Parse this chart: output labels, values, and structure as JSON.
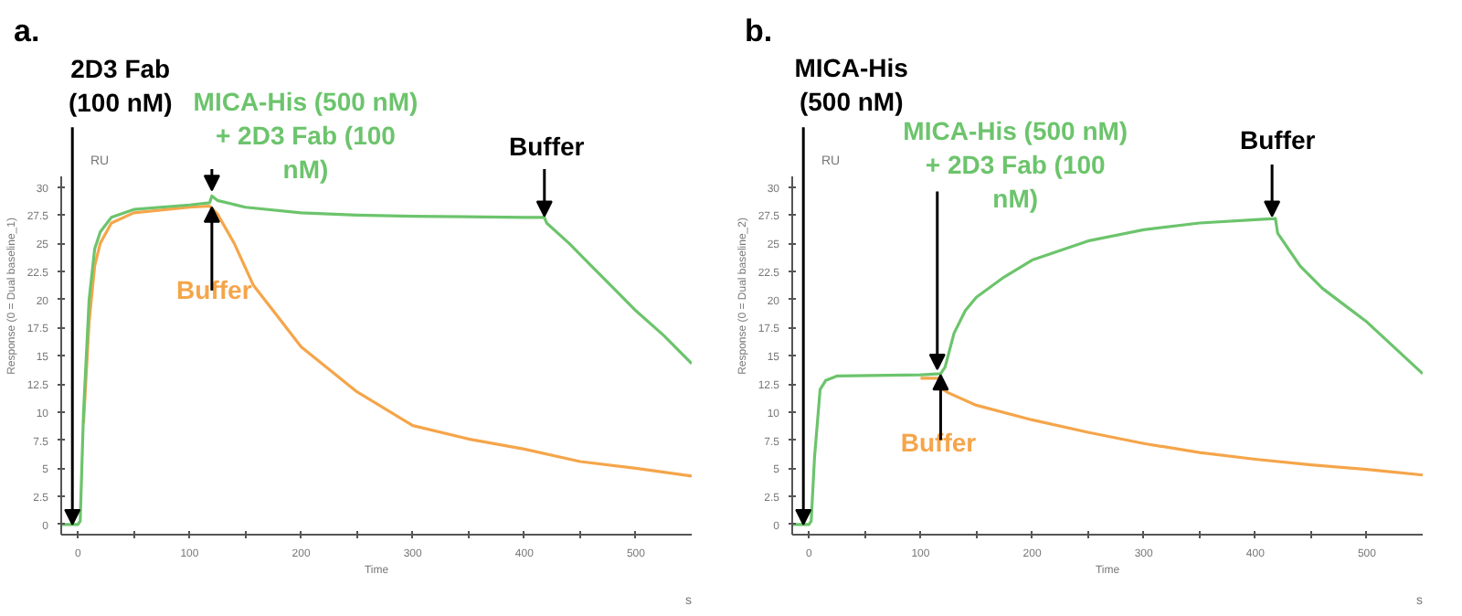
{
  "chart_data": [
    {
      "type": "line",
      "title": "a.",
      "xlabel": "Time",
      "ylabel": "Response (0 = Dual baseline_1)",
      "xlim": [
        -15,
        550
      ],
      "ylim": [
        -0.9,
        31
      ],
      "xticks": [
        0,
        {
          "value": 50,
          "label": null
        },
        100,
        {
          "value": 150,
          "label": null
        },
        200,
        {
          "value": 250,
          "label": null
        },
        300,
        {
          "value": 350,
          "label": null
        },
        400,
        {
          "value": 450,
          "label": null
        },
        500
      ],
      "yticks": [
        0,
        2.5,
        5,
        7.5,
        10,
        12.5,
        15,
        17.5,
        20,
        22.5,
        25,
        27.5,
        30
      ],
      "grid": false,
      "marker": "none",
      "line_style": "solid",
      "series": [
        {
          "color": "#6cc46c",
          "x": [
            -15,
            0,
            2,
            5,
            10,
            15,
            20,
            30,
            50,
            100,
            118,
            120,
            125,
            150,
            200,
            250,
            300,
            400,
            418,
            420,
            440,
            460,
            480,
            500,
            525,
            550
          ],
          "values": [
            0,
            0,
            0.3,
            10,
            20,
            24.5,
            26,
            27.3,
            28,
            28.4,
            28.6,
            29.2,
            28.8,
            28.2,
            27.7,
            27.5,
            27.4,
            27.3,
            27.3,
            26.8,
            25,
            23,
            21,
            19,
            16.8,
            14.3
          ]
        },
        {
          "color": "#f5a54a",
          "x": [
            5,
            10,
            15,
            20,
            30,
            50,
            100,
            118,
            125,
            140,
            157,
            175,
            200,
            250,
            300,
            350,
            400,
            450,
            500,
            550
          ],
          "values": [
            9,
            18,
            23,
            25,
            26.8,
            27.7,
            28.2,
            28.3,
            27.6,
            25,
            21.3,
            19,
            15.8,
            11.8,
            8.8,
            7.6,
            6.7,
            5.6,
            5,
            4.3
          ]
        }
      ],
      "annotations": [
        {
          "text": "2D3 Fab\n(100 nM)",
          "x": -5,
          "y": 0
        },
        {
          "text": "MICA-His (500 nM)\n+ 2D3 Fab (100\nnM)",
          "x": 120,
          "y": 29.7
        },
        {
          "text": "Buffer",
          "x": 418,
          "y": 27.4
        },
        {
          "text": "Buffer",
          "x": 120,
          "y": 28.2
        },
        "RU",
        "s"
      ]
    },
    {
      "type": "line",
      "title": "b.",
      "xlabel": "Time",
      "ylabel": "Response (0 = Dual baseline_2)",
      "xlim": [
        -15,
        550
      ],
      "ylim": [
        -0.9,
        31
      ],
      "xticks": [
        0,
        {
          "value": 50,
          "label": null
        },
        100,
        {
          "value": 150,
          "label": null
        },
        200,
        {
          "value": 250,
          "label": null
        },
        300,
        {
          "value": 350,
          "label": null
        },
        400,
        {
          "value": 450,
          "label": null
        },
        500
      ],
      "yticks": [
        0,
        2.5,
        5,
        7.5,
        10,
        12.5,
        15,
        17.5,
        20,
        22.5,
        25,
        27.5,
        30
      ],
      "grid": false,
      "marker": "none",
      "line_style": "solid",
      "series": [
        {
          "color": "#6cc46c",
          "x": [
            -15,
            0,
            2,
            5,
            10,
            15,
            25,
            100,
            118,
            122,
            130,
            140,
            150,
            175,
            200,
            250,
            300,
            350,
            400,
            418,
            420,
            440,
            460,
            480,
            500,
            525,
            550
          ],
          "values": [
            0,
            0,
            0.3,
            6,
            12,
            12.8,
            13.2,
            13.3,
            13.4,
            14,
            17,
            19,
            20.2,
            22,
            23.5,
            25.2,
            26.2,
            26.8,
            27.1,
            27.2,
            25.9,
            23,
            21,
            19.5,
            18,
            15.7,
            13.4
          ]
        },
        {
          "color": "#f5a54a",
          "x": [
            100,
            118,
            120,
            125,
            150,
            200,
            250,
            300,
            350,
            400,
            450,
            500,
            550
          ],
          "values": [
            13.0,
            13.0,
            12,
            11.7,
            10.6,
            9.3,
            8.2,
            7.2,
            6.4,
            5.8,
            5.3,
            4.9,
            4.4
          ]
        }
      ],
      "annotations": [
        {
          "text": "MICA-His\n(500 nM)",
          "x": -5,
          "y": 0
        },
        {
          "text": "MICA-His (500 nM)\n+ 2D3 Fab (100\nnM)",
          "x": 115,
          "y": 13.8
        },
        {
          "text": "Buffer",
          "x": 415,
          "y": 27.4
        },
        {
          "text": "Buffer",
          "x": 118,
          "y": 13.3
        },
        "RU",
        "s"
      ]
    }
  ]
}
